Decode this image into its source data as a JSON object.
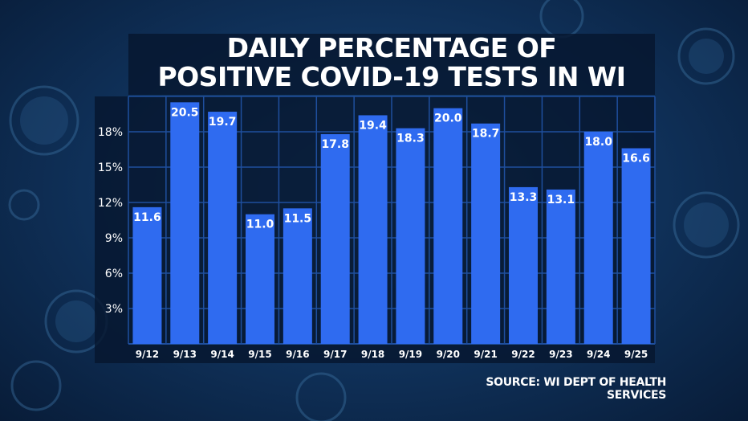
{
  "colors": {
    "bar": "#2f6bf0",
    "grid": "#1f4f9e",
    "text": "#ffffff"
  },
  "chart_data": {
    "type": "bar",
    "title": [
      "DAILY PERCENTAGE OF",
      "POSITIVE COVID-19 TESTS IN WI"
    ],
    "categories": [
      "9/12",
      "9/13",
      "9/14",
      "9/15",
      "9/16",
      "9/17",
      "9/18",
      "9/19",
      "9/20",
      "9/21",
      "9/22",
      "9/23",
      "9/24",
      "9/25"
    ],
    "values": [
      11.6,
      20.5,
      19.7,
      11.0,
      11.5,
      17.8,
      19.4,
      18.3,
      20.0,
      18.7,
      13.3,
      13.1,
      18.0,
      16.6
    ],
    "data_labels": [
      "11.6",
      "20.5",
      "19.7",
      "11.0",
      "11.5",
      "17.8",
      "19.4",
      "18.3",
      "20.0",
      "18.7",
      "13.3",
      "13.1",
      "18.0",
      "16.6"
    ],
    "yticks": [
      3,
      6,
      9,
      12,
      15,
      18
    ],
    "ytick_labels": [
      "3%",
      "6%",
      "9%",
      "12%",
      "15%",
      "18%"
    ],
    "ylim": [
      0,
      21
    ],
    "grid": true,
    "xlabel": "",
    "ylabel": ""
  },
  "source": "SOURCE: WI DEPT OF HEALTH SERVICES"
}
